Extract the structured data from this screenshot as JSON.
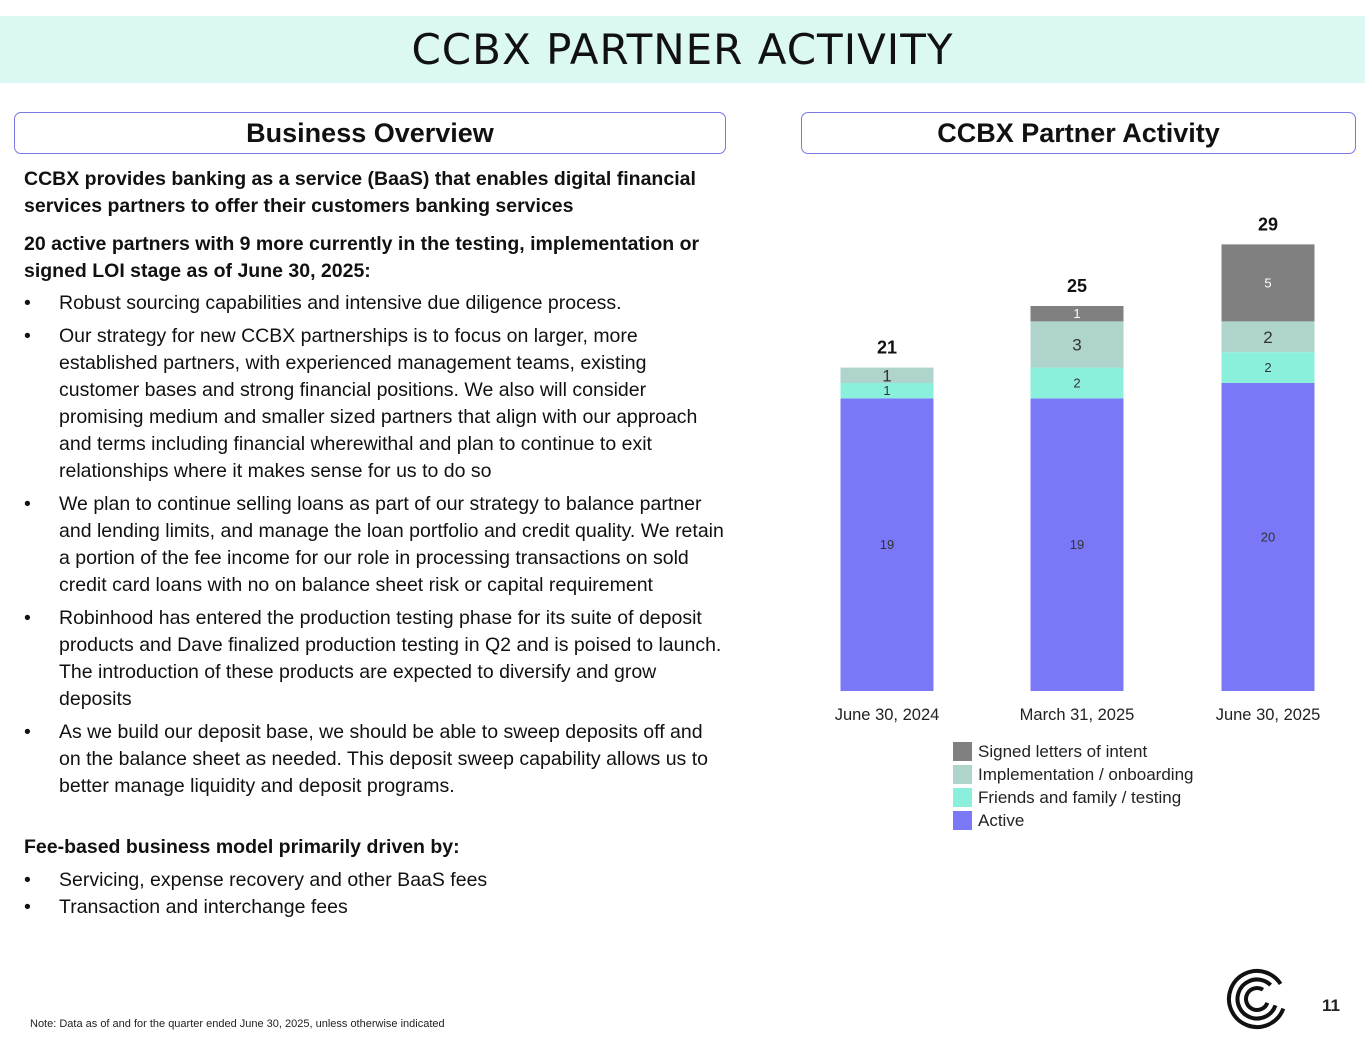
{
  "header": {
    "title": "CCBX PARTNER ACTIVITY"
  },
  "left_panel": {
    "heading": "Business Overview",
    "intro": "CCBX provides banking as a service (BaaS) that enables digital financial services partners to offer their customers banking services",
    "partners_summary": "20 active partners with 9 more currently in the testing, implementation or signed LOI stage as of June 30, 2025:",
    "bullets": [
      "Robust sourcing capabilities and intensive due diligence process.",
      "Our strategy for new CCBX partnerships is to focus on larger, more established partners, with experienced management teams, existing customer bases and strong financial positions. We also will consider promising medium and smaller sized partners that align with our approach and terms including financial wherewithal and plan to continue to exit relationships where it makes sense for us to do so",
      "We plan to continue selling loans as part of our strategy to balance partner and lending limits, and manage the loan portfolio and credit quality. We retain a portion of the fee income for our role in processing transactions on sold credit card loans with no on balance sheet risk or capital requirement",
      "Robinhood has entered the production testing phase for its suite of deposit products and Dave finalized production testing in Q2 and is poised to launch.  The introduction of these products are expected to diversify and grow deposits",
      "As we build our deposit base, we should be able to sweep deposits off and on the balance sheet as needed.  This deposit sweep capability allows us to better manage liquidity and deposit programs."
    ],
    "fee_heading": "Fee-based business model primarily driven by:",
    "fee_bullets": [
      "Servicing, expense recovery and other BaaS fees",
      "Transaction and interchange fees"
    ],
    "bullet_char": "•"
  },
  "right_panel": {
    "heading": "CCBX Partner Activity"
  },
  "chart_data": {
    "type": "bar",
    "stacked": true,
    "categories": [
      "June 30, 2024",
      "March 31, 2025",
      "June 30, 2025"
    ],
    "series": [
      {
        "name": "Active",
        "values": [
          19,
          19,
          20
        ],
        "color": "#7b78f8"
      },
      {
        "name": "Friends and family / testing",
        "values": [
          1,
          2,
          2
        ],
        "color": "#8af0dc"
      },
      {
        "name": "Implementation / onboarding",
        "values": [
          1,
          3,
          2
        ],
        "color": "#aed4cc"
      },
      {
        "name": "Signed letters of intent",
        "values": [
          0,
          1,
          5
        ],
        "color": "#808080"
      }
    ],
    "totals": [
      21,
      25,
      29
    ],
    "legend_position": "bottom",
    "legend_order": [
      "Signed letters of intent",
      "Implementation / onboarding",
      "Friends and family / testing",
      "Active"
    ],
    "grid": false
  },
  "footer": {
    "note": "Note:  Data as of and for the quarter ended June 30, 2025, unless otherwise indicated",
    "page_number": "11",
    "logo_icon": "ccb-logo-icon"
  }
}
